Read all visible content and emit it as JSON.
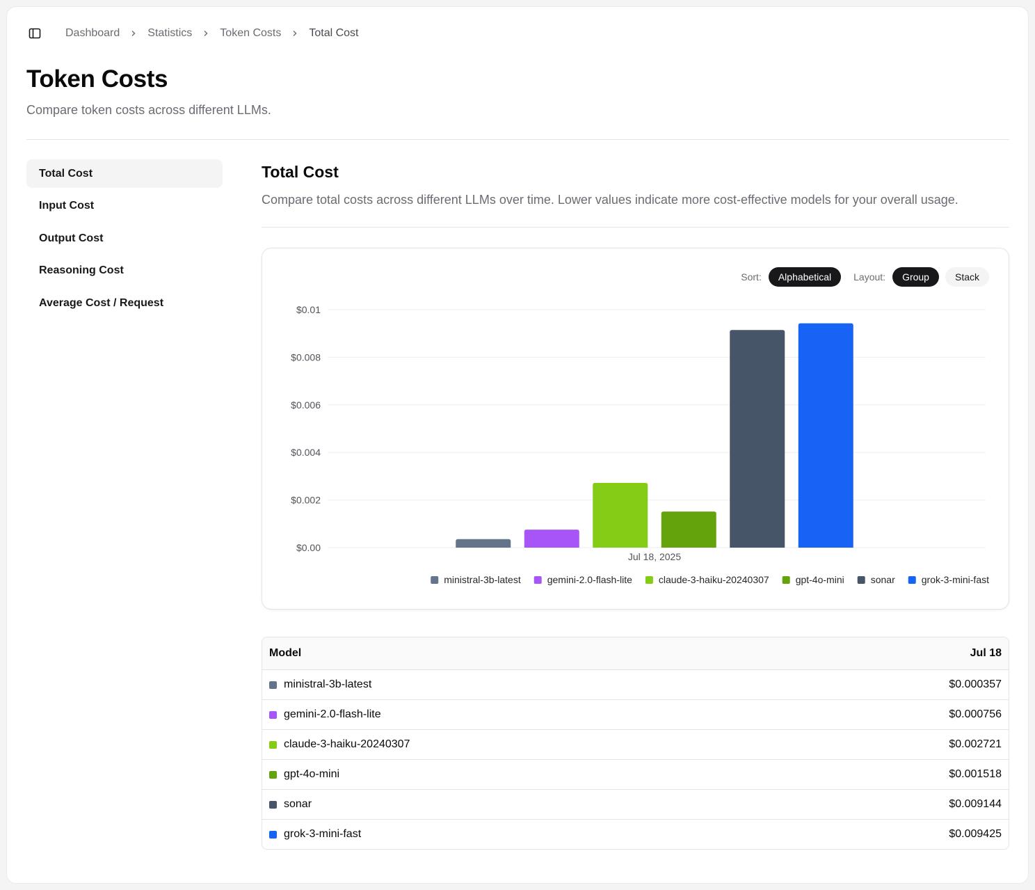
{
  "breadcrumb": [
    "Dashboard",
    "Statistics",
    "Token Costs",
    "Total Cost"
  ],
  "page": {
    "title": "Token Costs",
    "subtitle": "Compare token costs across different LLMs."
  },
  "nav": {
    "items": [
      {
        "label": "Total Cost",
        "active": true
      },
      {
        "label": "Input Cost",
        "active": false
      },
      {
        "label": "Output Cost",
        "active": false
      },
      {
        "label": "Reasoning Cost",
        "active": false
      },
      {
        "label": "Average Cost / Request",
        "active": false
      }
    ]
  },
  "section": {
    "title": "Total Cost",
    "description": "Compare total costs across different LLMs over time. Lower values indicate more cost-effective models for your overall usage."
  },
  "controls": {
    "sort_label": "Sort:",
    "sort_value": "Alphabetical",
    "layout_label": "Layout:",
    "layout_options": [
      "Group",
      "Stack"
    ],
    "layout_selected": "Group"
  },
  "chart_data": {
    "type": "bar",
    "categories": [
      "Jul 18, 2025"
    ],
    "ylim": [
      0,
      0.01
    ],
    "yticks": [
      "$0.00",
      "$0.002",
      "$0.004",
      "$0.006",
      "$0.008",
      "$0.01"
    ],
    "ytick_values": [
      0,
      0.002,
      0.004,
      0.006,
      0.008,
      0.01
    ],
    "grid": true,
    "legend_position": "bottom",
    "series": [
      {
        "name": "ministral-3b-latest",
        "color": "#64748b",
        "values": [
          0.000357
        ]
      },
      {
        "name": "gemini-2.0-flash-lite",
        "color": "#a855f7",
        "values": [
          0.000756
        ]
      },
      {
        "name": "claude-3-haiku-20240307",
        "color": "#84cc16",
        "values": [
          0.002721
        ]
      },
      {
        "name": "gpt-4o-mini",
        "color": "#65a30d",
        "values": [
          0.001518
        ]
      },
      {
        "name": "sonar",
        "color": "#475569",
        "values": [
          0.009144
        ]
      },
      {
        "name": "grok-3-mini-fast",
        "color": "#1763f5",
        "values": [
          0.009425
        ]
      }
    ]
  },
  "table": {
    "headers": [
      "Model",
      "Jul 18"
    ],
    "rows": [
      {
        "model": "ministral-3b-latest",
        "color": "#64748b",
        "value": "$0.000357"
      },
      {
        "model": "gemini-2.0-flash-lite",
        "color": "#a855f7",
        "value": "$0.000756"
      },
      {
        "model": "claude-3-haiku-20240307",
        "color": "#84cc16",
        "value": "$0.002721"
      },
      {
        "model": "gpt-4o-mini",
        "color": "#65a30d",
        "value": "$0.001518"
      },
      {
        "model": "sonar",
        "color": "#475569",
        "value": "$0.009144"
      },
      {
        "model": "grok-3-mini-fast",
        "color": "#1763f5",
        "value": "$0.009425"
      }
    ]
  }
}
